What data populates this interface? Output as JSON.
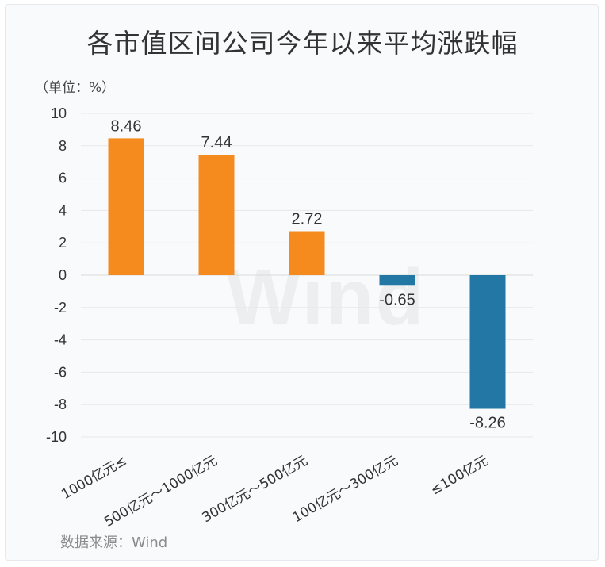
{
  "chart_data": {
    "type": "bar",
    "title": "各市值区间公司今年以来平均涨跌幅",
    "unit_label": "（单位：%）",
    "source": "数据来源：Wind",
    "watermark": "Wind",
    "categories": [
      "1000亿元≤",
      "500亿元～1000亿元",
      "300亿元～500亿元",
      "100亿元～300亿元",
      "≤100亿元"
    ],
    "values": [
      8.46,
      7.44,
      2.72,
      -0.65,
      -8.26
    ],
    "value_labels": [
      "8.46",
      "7.44",
      "2.72",
      "-0.65",
      "-8.26"
    ],
    "ylim": [
      -10,
      10
    ],
    "yticks": [
      10,
      8,
      6,
      4,
      2,
      0,
      -2,
      -4,
      -6,
      -8,
      -10
    ],
    "grid": true,
    "legend": "none",
    "colors": {
      "positive": "#f58a1f",
      "negative": "#2277a5",
      "grid": "#e8e8e8",
      "zero_line": "#d9d9d9"
    }
  }
}
